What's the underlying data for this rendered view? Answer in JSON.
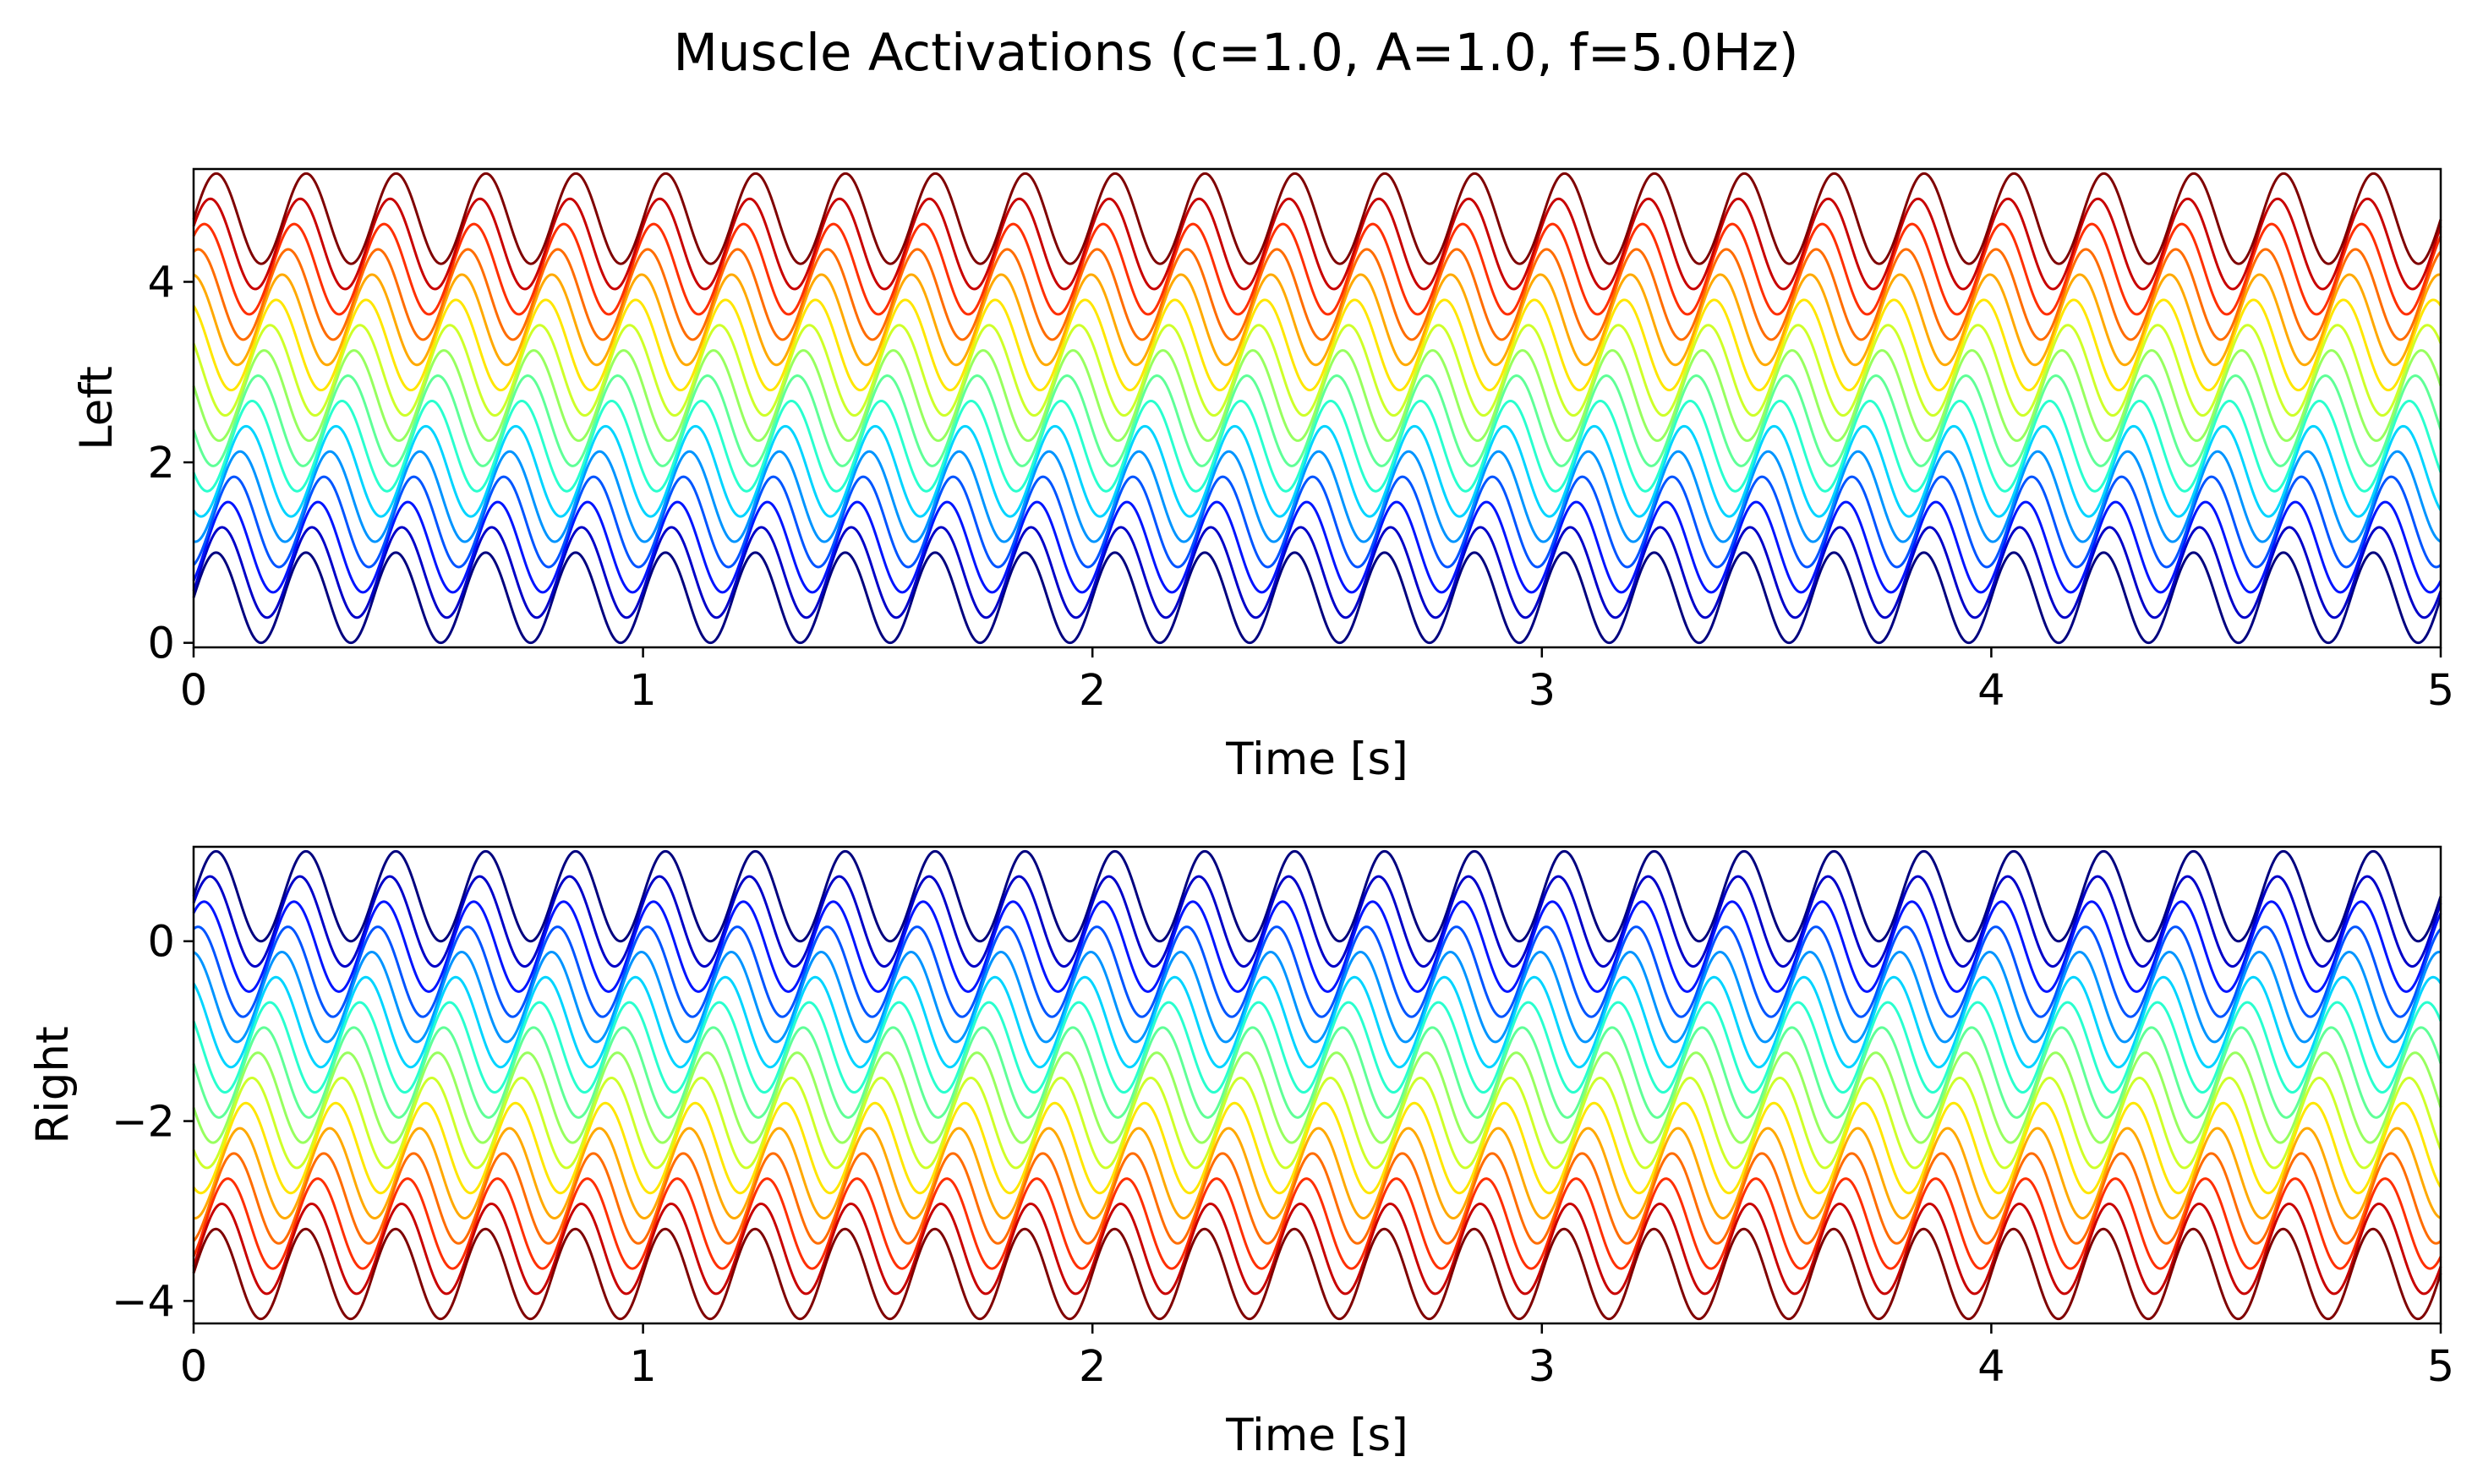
{
  "figure": {
    "title": "Muscle Activations (c=1.0, A=1.0, f=5.0Hz)"
  },
  "chart_data": [
    {
      "type": "line",
      "panel": "left",
      "title": "",
      "xlabel": "Time [s]",
      "ylabel": "Left",
      "xlim": [
        0,
        5
      ],
      "ylim": [
        -0.05,
        5.25
      ],
      "xticks": [
        "0",
        "1",
        "2",
        "3",
        "4",
        "5"
      ],
      "yticks": [
        "0",
        "2",
        "4"
      ],
      "grid": false,
      "legend": "none",
      "colormap": "jet",
      "series_colors": [
        "#00007f",
        "#0000c8",
        "#0014ff",
        "#0054ff",
        "#0094ff",
        "#00d4ff",
        "#29ffce",
        "#5fff97",
        "#97ff5f",
        "#ceff29",
        "#ffe600",
        "#ffa900",
        "#ff6c00",
        "#ff2f00",
        "#c80000",
        "#7f0000"
      ],
      "signal": {
        "form": "offset_i + A*(0.5 + 0.5*sin(2*pi*f*t - phase_i))",
        "amplitude": 1.0,
        "frequency_hz": 5.0,
        "series_count": 16,
        "offset_step": 0.28,
        "phase_step_rad": 0.42,
        "t_start": 0.0,
        "t_end": 5.0
      }
    },
    {
      "type": "line",
      "panel": "right",
      "title": "",
      "xlabel": "Time [s]",
      "ylabel": "Right",
      "xlim": [
        0,
        5
      ],
      "ylim": [
        -4.25,
        1.05
      ],
      "xticks": [
        "0",
        "1",
        "2",
        "3",
        "4",
        "5"
      ],
      "yticks": [
        "0",
        "−2",
        "−4"
      ],
      "grid": false,
      "legend": "none",
      "colormap": "jet",
      "series_colors": [
        "#00007f",
        "#0000c8",
        "#0014ff",
        "#0054ff",
        "#0094ff",
        "#00d4ff",
        "#29ffce",
        "#5fff97",
        "#97ff5f",
        "#ceff29",
        "#ffe600",
        "#ffa900",
        "#ff6c00",
        "#ff2f00",
        "#c80000",
        "#7f0000"
      ],
      "signal": {
        "form": "offset_i + A*(0.5 + 0.5*sin(2*pi*f*t - phase_i))",
        "amplitude": 1.0,
        "frequency_hz": 5.0,
        "series_count": 16,
        "offset_step": -0.28,
        "phase_step_rad": -0.42,
        "t_start": 0.0,
        "t_end": 5.0
      }
    }
  ]
}
